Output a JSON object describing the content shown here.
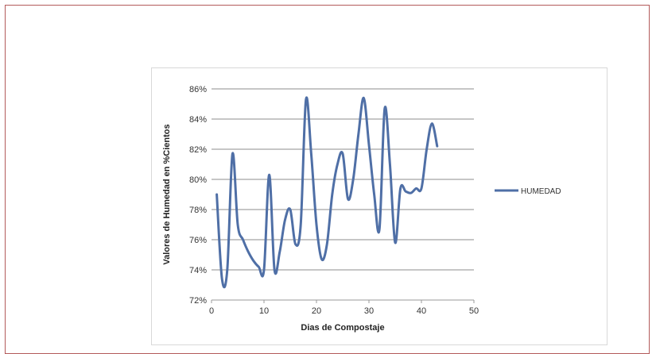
{
  "chart_data": {
    "type": "line",
    "xlabel": "Dias de Compostaje",
    "ylabel": "Valores de Humedad en %Cientos",
    "xlim": [
      0,
      50
    ],
    "ylim": [
      72,
      86
    ],
    "x_ticks": [
      0,
      10,
      20,
      30,
      40,
      50
    ],
    "y_ticks": [
      72,
      74,
      76,
      78,
      80,
      82,
      84,
      86
    ],
    "y_tick_labels": [
      "72%",
      "74%",
      "76%",
      "78%",
      "80%",
      "82%",
      "84%",
      "86%"
    ],
    "grid": "horizontal",
    "legend_position": "right",
    "series": [
      {
        "name": "HUMEDAD",
        "color": "#4f6fa6",
        "x": [
          1,
          2,
          3,
          4,
          5,
          6,
          7,
          8,
          9,
          10,
          11,
          12,
          13,
          14,
          15,
          16,
          17,
          18,
          19,
          20,
          21,
          22,
          23,
          24,
          25,
          26,
          27,
          28,
          29,
          30,
          31,
          32,
          33,
          34,
          35,
          36,
          37,
          38,
          39,
          40,
          41,
          42,
          43
        ],
        "values": [
          79,
          73.4,
          74,
          81.7,
          77,
          76,
          75.2,
          74.6,
          74.2,
          74,
          80.3,
          74,
          75.2,
          77.3,
          78,
          75.7,
          77,
          85.3,
          81.7,
          77,
          74.7,
          75.7,
          79,
          81,
          81.7,
          78.7,
          80,
          83,
          85.4,
          82.3,
          79,
          76.7,
          84.7,
          81,
          75.8,
          79.4,
          79.2,
          79.1,
          79.4,
          79.4,
          82,
          83.7,
          82.2
        ]
      }
    ]
  }
}
